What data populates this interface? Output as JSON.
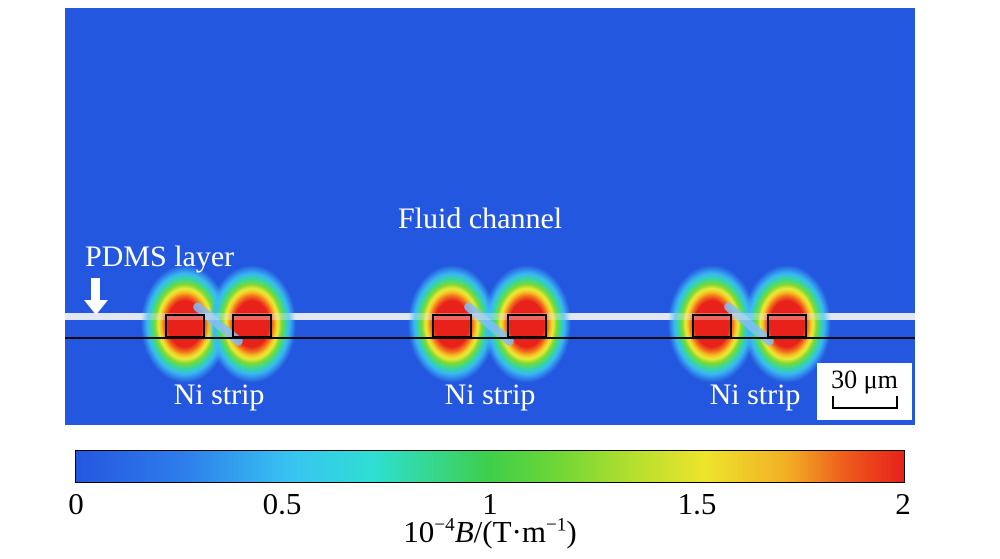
{
  "figure": {
    "labels": {
      "fluid_channel": "Fluid channel",
      "pdms_layer": "PDMS layer",
      "ni_strips": [
        "Ni strip",
        "Ni strip",
        "Ni strip"
      ],
      "scale_bar": "30 μm"
    },
    "colorbar": {
      "ticks": [
        "0",
        "0.5",
        "1",
        "1.5",
        "2"
      ],
      "unit_label": {
        "base": "10",
        "exp": "−4",
        "symbol": "B",
        "mid": "/(T·m",
        "exp2": "−1",
        "end": ")"
      }
    },
    "colors": {
      "background_field": "#2457e0",
      "peak": "#e62119",
      "pdms_band": "#eeeef6",
      "outline": "#000000",
      "label_text": "#ffffff"
    }
  },
  "chart_data": {
    "type": "heatmap",
    "title": "",
    "description": "Simulated magnetic field gradient distribution around three pairs of Ni strips beneath a fluid channel in a PDMS microfluidic device",
    "colorbar": {
      "min": 0,
      "max": 2,
      "ticks": [
        0,
        0.5,
        1,
        1.5,
        2
      ],
      "label": "10⁻⁴B/(T·m⁻¹)",
      "colormap": "jet-like",
      "stops": [
        {
          "pos": 0.0,
          "color": "#2457e0"
        },
        {
          "pos": 0.13,
          "color": "#2e7deb"
        },
        {
          "pos": 0.26,
          "color": "#38c4f2"
        },
        {
          "pos": 0.36,
          "color": "#2edfd2"
        },
        {
          "pos": 0.5,
          "color": "#3ecf4a"
        },
        {
          "pos": 0.67,
          "color": "#b2df2e"
        },
        {
          "pos": 0.76,
          "color": "#eee42c"
        },
        {
          "pos": 0.86,
          "color": "#f2ae24"
        },
        {
          "pos": 1.0,
          "color": "#e62119"
        }
      ]
    },
    "background_value": 0,
    "hotspots": [
      {
        "x_frac": 0.141,
        "y_frac": 0.758,
        "value": "≥2 (saturated)"
      },
      {
        "x_frac": 0.22,
        "y_frac": 0.758,
        "value": "≥2 (saturated)"
      },
      {
        "x_frac": 0.455,
        "y_frac": 0.758,
        "value": "≥2 (saturated)"
      },
      {
        "x_frac": 0.544,
        "y_frac": 0.758,
        "value": "≥2 (saturated)"
      },
      {
        "x_frac": 0.761,
        "y_frac": 0.758,
        "value": "≥2 (saturated)"
      },
      {
        "x_frac": 0.849,
        "y_frac": 0.758,
        "value": "≥2 (saturated)"
      }
    ],
    "structure": {
      "pdms_top_band_y_frac": 0.735,
      "substrate_line_y_frac": 0.79,
      "ni_strip_pairs_center_x_frac": [
        [
          0.141,
          0.22
        ],
        [
          0.455,
          0.544
        ],
        [
          0.761,
          0.849
        ]
      ]
    },
    "annotations": [
      "Fluid channel",
      "PDMS layer",
      "Ni strip",
      "Ni strip",
      "Ni strip"
    ],
    "scale_bar": {
      "length_um": 30,
      "label": "30 μm"
    },
    "axes": "none (spatial map, scale bar only)",
    "legend_position": "colorbar below, horizontal"
  }
}
